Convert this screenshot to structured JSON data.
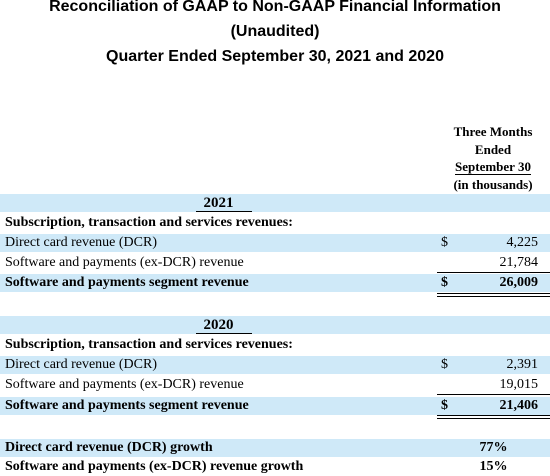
{
  "header": {
    "title": "Reconciliation of GAAP to Non-GAAP Financial Information",
    "subtitle": "(Unaudited)",
    "period": "Quarter Ended September 30, 2021 and 2020"
  },
  "column": {
    "line1": "Three Months",
    "line2": "Ended",
    "line3": "September 30",
    "units": "(in thousands)"
  },
  "sections": [
    {
      "year": "2021",
      "heading": "Subscription, transaction and services revenues:",
      "dcr_label": "Direct card revenue (DCR)",
      "dcr_currency": "$",
      "dcr_value": "4,225",
      "exdcr_label": "Software and payments (ex-DCR) revenue",
      "exdcr_value": "21,784",
      "total_label": "Software and payments segment revenue",
      "total_currency": "$",
      "total_value": "26,009"
    },
    {
      "year": "2020",
      "heading": "Subscription, transaction and services revenues:",
      "dcr_label": "Direct card revenue (DCR)",
      "dcr_currency": "$",
      "dcr_value": "2,391",
      "exdcr_label": "Software and payments (ex-DCR) revenue",
      "exdcr_value": "19,015",
      "total_label": "Software and payments segment revenue",
      "total_currency": "$",
      "total_value": "21,406"
    }
  ],
  "growth": {
    "dcr_label": "Direct card revenue (DCR) growth",
    "dcr_value": "77%",
    "exdcr_label": "Software and payments (ex-DCR) revenue growth",
    "exdcr_value": "15%"
  },
  "colors": {
    "row_highlight": "#cfe9f8"
  }
}
